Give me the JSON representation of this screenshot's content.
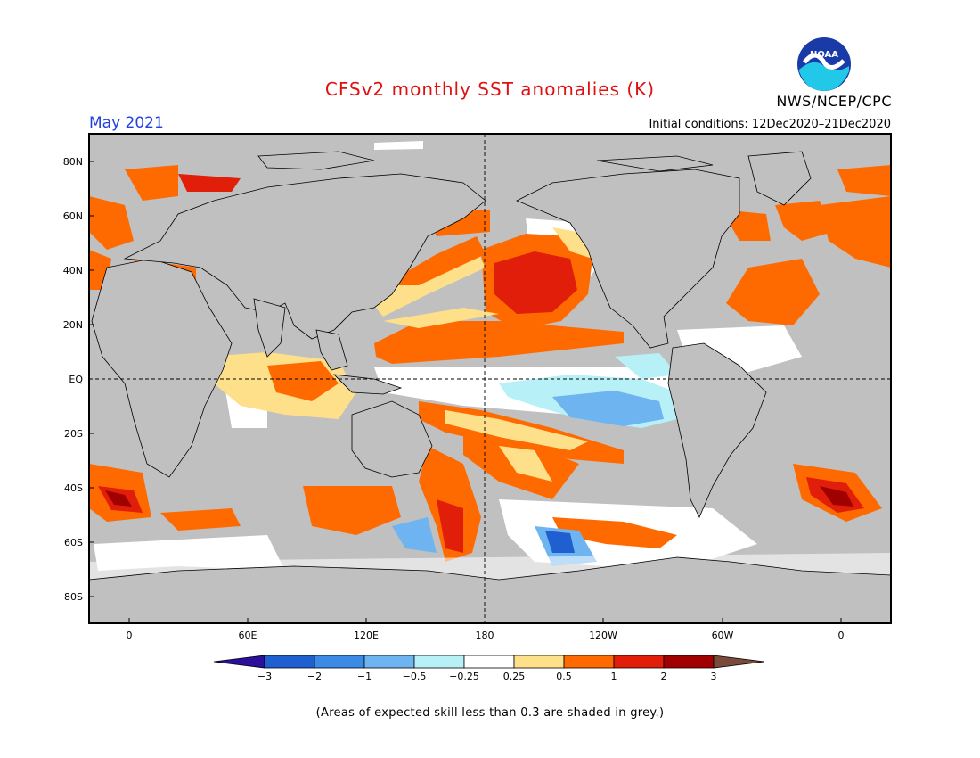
{
  "header": {
    "title": "CFSv2 monthly SST anomalies (K)",
    "month": "May 2021",
    "initial_conditions": "Initial conditions: 12Dec2020–21Dec2020",
    "agency": "NWS/NCEP/CPC",
    "logo_text": "NOAA"
  },
  "map": {
    "lat_labels": [
      "80N",
      "60N",
      "40N",
      "20N",
      "EQ",
      "20S",
      "40S",
      "60S",
      "80S"
    ],
    "lon_labels": [
      "0",
      "60E",
      "120E",
      "180",
      "120W",
      "60W",
      "0"
    ],
    "mask_color": "#c0c0c0",
    "ocean_color": "#ffffff"
  },
  "colorbar": {
    "labels": [
      "−3",
      "−2",
      "−1",
      "−0.5",
      "−0.25",
      "0.25",
      "0.5",
      "1",
      "2",
      "3"
    ],
    "colors": [
      "#2c0f9a",
      "#1f5fd0",
      "#3a8ae6",
      "#6eb4f0",
      "#b8f0f8",
      "#ffffff",
      "#ffe08a",
      "#ff6a00",
      "#e01e0a",
      "#a00000",
      "#7a4a3a"
    ]
  },
  "footnote": "(Areas of expected skill less than 0.3 are shaded in grey.)"
}
